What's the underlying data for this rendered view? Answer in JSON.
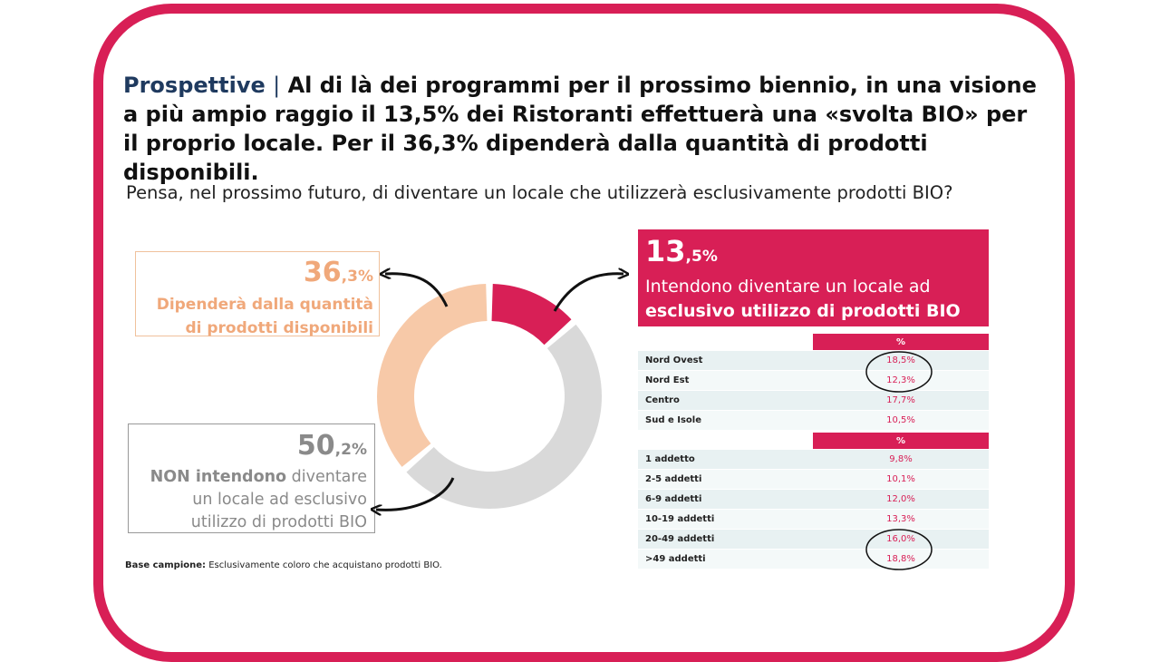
{
  "headline": {
    "keyword": "Prospettive",
    "separator": "|",
    "text": "Al di là dei programmi per il prossimo biennio, in una visione a più ampio raggio il 13,5% dei Ristoranti effettuerà una «svolta BIO» per il proprio locale. Per il 36,3% dipenderà dalla quantità di prodotti disponibili."
  },
  "question": "Pensa, nel prossimo futuro, di diventare un locale che utilizzerà esclusivamente prodotti BIO?",
  "chart_data": {
    "type": "pie",
    "donut": true,
    "slices": [
      {
        "label": "Intendono diventare un locale ad esclusivo utilizzo di prodotti BIO",
        "value": 13.5,
        "color": "#d81f56"
      },
      {
        "label": "NON intendono diventare un locale ad esclusivo utilizzo di prodotti BIO",
        "value": 50.2,
        "color": "#d9d9d9"
      },
      {
        "label": "Dipenderà dalla quantità di prodotti disponibili",
        "value": 36.3,
        "color": "#f7c9a8"
      }
    ]
  },
  "callouts": {
    "depends": {
      "pct_int": "36",
      "pct_dec": ",3%",
      "line1": "Dipenderà dalla quantità",
      "line2": "di prodotti disponibili",
      "color": "#f0a87a"
    },
    "not": {
      "pct_int": "50",
      "pct_dec": ",2%",
      "bold": "NON intendono",
      "rest1": " diventare",
      "line2": "un locale ad esclusivo",
      "line3": "utilizzo di prodotti BIO",
      "color": "#8a8a8a"
    },
    "yes": {
      "pct_int": "13",
      "pct_dec": ",5%",
      "line1": "Intendono diventare un locale ad",
      "line2": "esclusivo utilizzo di prodotti BIO",
      "color": "#d81f56"
    }
  },
  "table_area": {
    "header": "%",
    "rows": [
      {
        "label": "Nord Ovest",
        "value": "18,5%"
      },
      {
        "label": "Nord Est",
        "value": "12,3%"
      },
      {
        "label": "Centro",
        "value": "17,7%"
      },
      {
        "label": "Sud e Isole",
        "value": "10,5%"
      }
    ]
  },
  "table_size": {
    "header": "%",
    "rows": [
      {
        "label": "1 addetto",
        "value": "9,8%"
      },
      {
        "label": "2-5 addetti",
        "value": "10,1%"
      },
      {
        "label": "6-9 addetti",
        "value": "12,0%"
      },
      {
        "label": "10-19 addetti",
        "value": "13,3%"
      },
      {
        "label": "20-49 addetti",
        "value": "16,0%"
      },
      {
        "label": ">49 addetti",
        "value": "18,8%"
      }
    ]
  },
  "base": {
    "label": "Base campione:",
    "text": " Esclusivamente coloro che acquistano  prodotti BIO."
  },
  "colors": {
    "accent": "#d81f56",
    "orange": "#f7c9a8",
    "grey": "#d9d9d9",
    "table_row": "#e8f1f2"
  }
}
